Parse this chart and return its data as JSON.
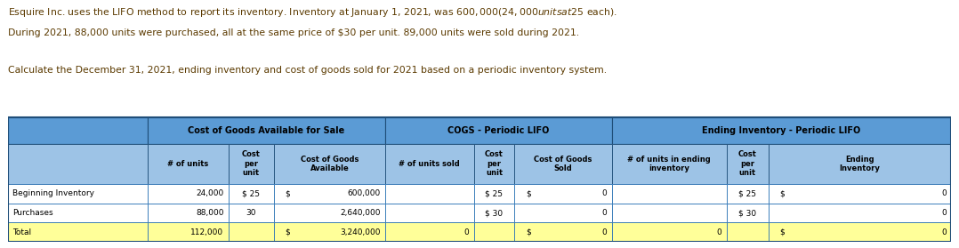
{
  "para1_line1": "Esquire Inc. uses the LIFO method to report its inventory. Inventory at January 1, 2021, was $600,000 (24,000 units at $25 each).",
  "para1_line2": "During 2021, 88,000 units were purchased, all at the same price of $30 per unit. 89,000 units were sold during 2021.",
  "para2": "Calculate the December 31, 2021, ending inventory and cost of goods sold for 2021 based on a periodic inventory system.",
  "text_color": "#5B3A00",
  "header_bg": "#5B9BD5",
  "subheader_bg": "#9DC3E6",
  "white_bg": "#FFFFFF",
  "yellow_bg": "#FFFF99",
  "border_dark": "#1F4E79",
  "border_light": "#2E75B6",
  "col_header_1": "Cost of Goods Available for Sale",
  "col_header_2": "COGS - Periodic LIFO",
  "col_header_3": "Ending Inventory - Periodic LIFO",
  "sub_col_headers": [
    "# of units",
    "Cost\nper\nunit",
    "Cost of Goods\nAvailable",
    "# of units sold",
    "Cost\nper\nunit",
    "Cost of Goods\nSold",
    "# of units in ending\ninventory",
    "Cost\nper\nunit",
    "Ending\nInventory"
  ],
  "rows": [
    {
      "label": "Beginning Inventory",
      "col0": "24,000",
      "col1": "$ 25",
      "col2_sym": "$",
      "col2_val": "600,000",
      "col3": "",
      "col4": "$ 25",
      "col5_sym": "$",
      "col5_val": "0",
      "col6": "",
      "col7": "$ 25",
      "col8_sym": "$",
      "col8_val": "0",
      "bg": "#FFFFFF"
    },
    {
      "label": "Purchases",
      "col0": "88,000",
      "col1": "30",
      "col2_sym": "",
      "col2_val": "2,640,000",
      "col3": "",
      "col4": "$ 30",
      "col5_sym": "",
      "col5_val": "0",
      "col6": "",
      "col7": "$ 30",
      "col8_sym": "",
      "col8_val": "0",
      "bg": "#FFFFFF"
    },
    {
      "label": "Total",
      "col0": "112,000",
      "col1": "",
      "col2_sym": "$",
      "col2_val": "3,240,000",
      "col3": "0",
      "col4": "",
      "col5_sym": "$",
      "col5_val": "0",
      "col6": "0",
      "col7": "",
      "col8_sym": "$",
      "col8_val": "0",
      "bg": "#FFFF99"
    }
  ],
  "fig_width": 10.78,
  "fig_height": 2.79,
  "dpi": 100
}
